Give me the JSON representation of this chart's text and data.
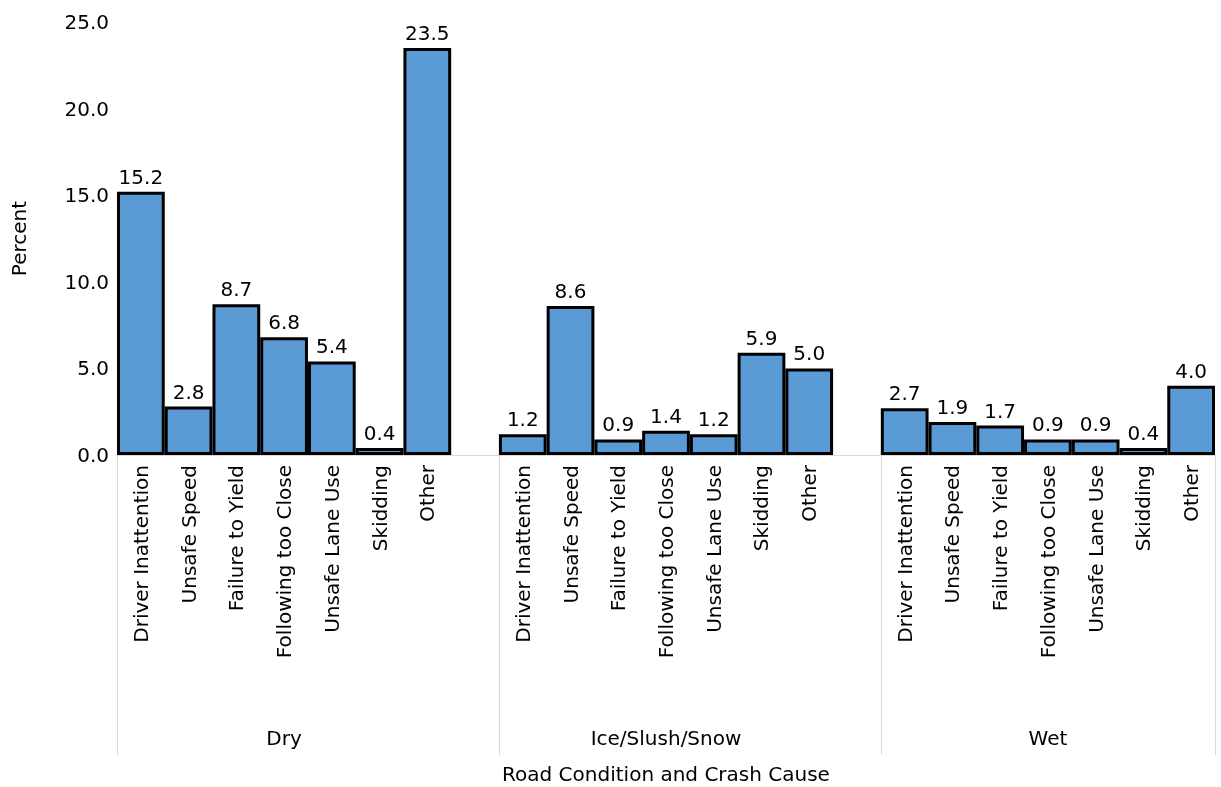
{
  "chart_data": {
    "type": "bar",
    "ylabel": "Percent",
    "categories": [
      "Driver Inattention",
      "Unsafe Speed",
      "Failure to Yield",
      "Following too Close",
      "Unsafe Lane Use",
      "Skidding",
      "Other",
      null,
      "Driver Inattention",
      "Unsafe Speed",
      "Failure to Yield",
      "Following too Close",
      "Unsafe Lane Use",
      "Skidding",
      "Other",
      null,
      "Driver Inattention",
      "Unsafe Speed",
      "Failure to Yield",
      "Following too Close",
      "Unsafe Lane Use",
      "Skidding",
      "Other"
    ],
    "values": [
      15.2,
      2.8,
      8.7,
      6.8,
      5.4,
      0.4,
      23.5,
      null,
      1.2,
      8.6,
      0.9,
      1.4,
      1.2,
      5.9,
      5.0,
      null,
      2.7,
      1.9,
      1.7,
      0.9,
      0.9,
      0.4,
      4.0
    ],
    "value_labels": [
      "15.2",
      "2.8",
      "8.7",
      "6.8",
      "5.4",
      "0.4",
      "23.5",
      null,
      "1.2",
      "8.6",
      "0.9",
      "1.4",
      "1.2",
      "5.9",
      "5.0",
      null,
      "2.7",
      "1.9",
      "1.7",
      "0.9",
      "0.9",
      "0.4",
      "4.0"
    ],
    "annotations": [
      "Dry",
      "Ice/Slush/Snow",
      "Wet",
      "Road Condition and Crash Cause"
    ],
    "color": "#5b9bd5",
    "ylim": [
      0,
      25
    ],
    "yticks": [
      {
        "value": 0,
        "label": "0.0"
      },
      {
        "value": 5,
        "label": "5.0"
      },
      {
        "value": 10,
        "label": "10.0"
      },
      {
        "value": 15,
        "label": "15.0"
      },
      {
        "value": 20,
        "label": "20.0"
      },
      {
        "value": 25,
        "label": "25.0"
      }
    ],
    "grid": false
  }
}
